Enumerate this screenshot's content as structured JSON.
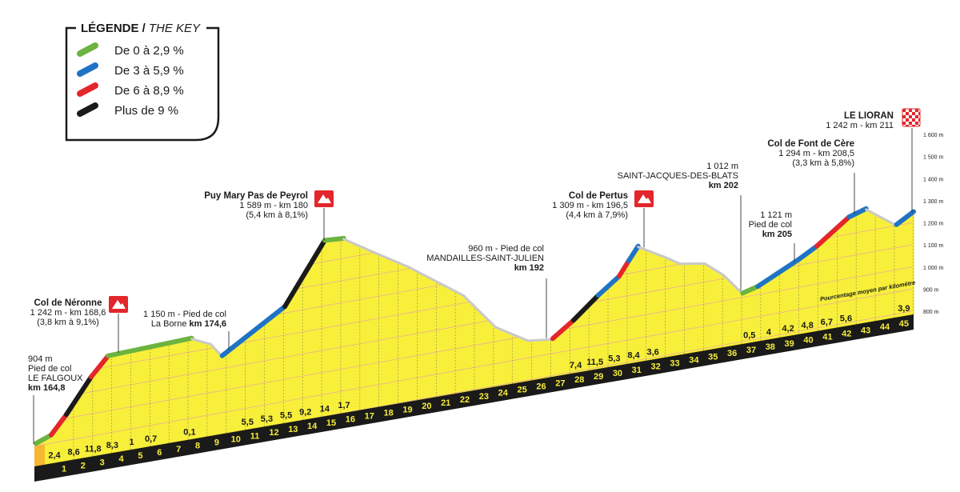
{
  "chart_data": {
    "type": "profile",
    "legend": {
      "title": "LÉGENDE /",
      "subtitle": "THE KEY",
      "items": [
        {
          "label": "De 0 à 2,9 %",
          "color": "#6cb33f"
        },
        {
          "label": "De 3 à 5,9 %",
          "color": "#1f73c4"
        },
        {
          "label": "De 6 à 8,9 %",
          "color": "#e3262b"
        },
        {
          "label": "Plus de 9 %",
          "color": "#1a1a1a"
        }
      ]
    },
    "xlim": [
      164.8,
      211
    ],
    "ylim": [
      800,
      1600
    ],
    "yticks": [
      {
        "value": 800,
        "label": "800 m"
      },
      {
        "value": 900,
        "label": "900 m"
      },
      {
        "value": 1000,
        "label": "1 000 m"
      },
      {
        "value": 1100,
        "label": "1 100 m"
      },
      {
        "value": 1200,
        "label": "1 200 m"
      },
      {
        "value": 1300,
        "label": "1 300 m"
      },
      {
        "value": 1400,
        "label": "1 400 m"
      },
      {
        "value": 1500,
        "label": "1 500 m"
      },
      {
        "value": 1600,
        "label": "1 600 m"
      }
    ],
    "grid": true,
    "profile": {
      "x": [
        164.8,
        165.6,
        166.4,
        167.7,
        168.6,
        173.0,
        174.0,
        174.6,
        177.9,
        180.0,
        181.0,
        182.7,
        184.4,
        187.3,
        189.0,
        190.7,
        192.0,
        193.1,
        194.4,
        195.5,
        196.0,
        196.5,
        197.9,
        198.7,
        200.0,
        201.0,
        202.0,
        202.8,
        205.0,
        205.9,
        207.6,
        208.5,
        210.1,
        211.0
      ],
      "y": [
        904,
        930,
        1010,
        1160,
        1242,
        1254,
        1215,
        1150,
        1322,
        1589,
        1583,
        1493,
        1405,
        1231,
        1061,
        974,
        960,
        1026,
        1119,
        1188,
        1250,
        1309,
        1242,
        1199,
        1180,
        1112,
        1012,
        1030,
        1121,
        1164,
        1270,
        1294,
        1197,
        1242
      ],
      "colors": [
        null,
        "#6cb33f",
        "#e3262b",
        "#1a1a1a",
        "#e3262b",
        "#6cb33f",
        null,
        null,
        "#1f73c4",
        "#1a1a1a",
        "#6cb33f",
        null,
        null,
        null,
        null,
        null,
        null,
        "#e3262b",
        "#1a1a1a",
        "#1f73c4",
        "#e3262b",
        "#1f73c4",
        null,
        null,
        null,
        null,
        null,
        "#6cb33f",
        "#1f73c4",
        "#1f73c4",
        "#e3262b",
        "#1f73c4",
        null,
        "#1f73c4"
      ]
    },
    "categories": [
      "1",
      "2",
      "3",
      "4",
      "5",
      "6",
      "7",
      "8",
      "9",
      "10",
      "11",
      "12",
      "13",
      "14",
      "15",
      "16",
      "17",
      "18",
      "19",
      "20",
      "21",
      "22",
      "23",
      "24",
      "25",
      "26",
      "27",
      "28",
      "29",
      "30",
      "31",
      "32",
      "33",
      "34",
      "35",
      "36",
      "37",
      "38",
      "39",
      "40",
      "41",
      "42",
      "43",
      "44",
      "45"
    ],
    "gradients": {
      "name": "Pourcentage moyen par kilomètre",
      "values": [
        2.4,
        8.6,
        11.8,
        8.3,
        1,
        0.7,
        null,
        0.1,
        null,
        null,
        5.5,
        5.3,
        5.5,
        9.2,
        14,
        1.7,
        null,
        null,
        null,
        null,
        null,
        null,
        null,
        null,
        null,
        null,
        null,
        7.4,
        11.5,
        5.3,
        8.4,
        3.6,
        null,
        null,
        null,
        null,
        0.5,
        4,
        4.2,
        4.8,
        6.7,
        5.6,
        null,
        null,
        3.9
      ],
      "value_labels": [
        "2,4",
        "8,6",
        "11,8",
        "8,3",
        "1",
        "0,7",
        null,
        "0,1",
        null,
        null,
        "5,5",
        "5,3",
        "5,5",
        "9,2",
        "14",
        "1,7",
        null,
        null,
        null,
        null,
        null,
        null,
        null,
        null,
        null,
        null,
        null,
        "7,4",
        "11,5",
        "5,3",
        "8,4",
        "3,6",
        null,
        null,
        null,
        null,
        "0,5",
        "4",
        "4,2",
        "4,8",
        "6,7",
        "5,6",
        null,
        null,
        "3,9"
      ]
    },
    "annotations": [
      {
        "title": "Col de Néronne",
        "lines": [
          "1 242 m - km 168,6",
          "(3,8 km à 9,1%)"
        ]
      },
      {
        "lines": [
          "904 m",
          "Pied de col",
          "LE FALGOUX",
          {
            "text": "km 164,8",
            "bold": true
          }
        ]
      },
      {
        "lines": [
          "1 150 m - Pied de col",
          [
            "La Borne ",
            {
              "text": "km 174,6",
              "bold": true
            }
          ]
        ]
      },
      {
        "title": "Puy Mary Pas de Peyrol",
        "lines": [
          "1 589 m - km 180",
          "(5,4 km à 8,1%)"
        ]
      },
      {
        "lines": [
          "960 m - Pied de col",
          "MANDAILLES-SAINT-JULIEN",
          {
            "text": "km 192",
            "bold": true
          }
        ]
      },
      {
        "title": "Col de Pertus",
        "lines": [
          "1 309 m - km 196,5",
          "(4,4 km à 7,9%)"
        ]
      },
      {
        "lines": [
          "1 012 m",
          "SAINT-JACQUES-DES-BLATS",
          {
            "text": "km 202",
            "bold": true
          }
        ]
      },
      {
        "lines": [
          "1 121 m",
          "Pied de col",
          {
            "text": "km 205",
            "bold": true
          }
        ]
      },
      {
        "title": "Col de Font de Cère",
        "lines": [
          "1 294 m - km 208,5",
          "(3,3 km à 5,8%)"
        ]
      },
      {
        "title": "LE LIORAN",
        "lines": [
          "1 242 m - km 211"
        ]
      }
    ]
  }
}
